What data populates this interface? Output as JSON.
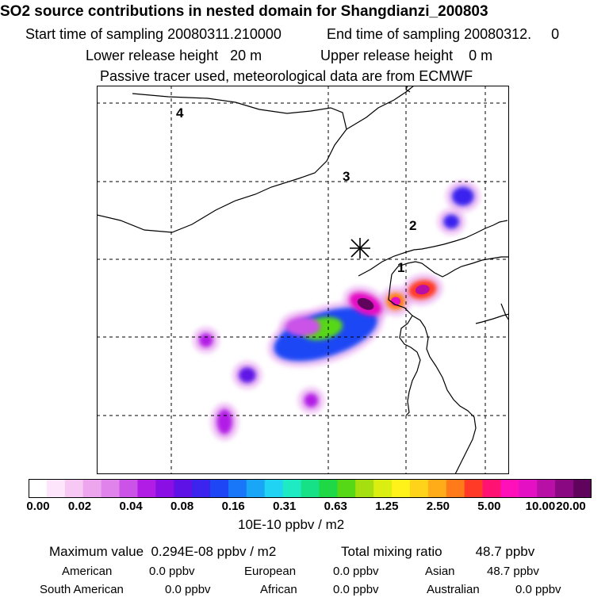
{
  "header": {
    "title": "SO2 source contributions in nested domain for Shangdianzi_200803",
    "start": "Start time of sampling 20080311.210000",
    "end": "End time of sampling 20080312.     0",
    "lower": "Lower release height   20 m",
    "upper": "Upper release height    0 m",
    "note": "Passive tracer used, meteorological data are from ECMWF"
  },
  "colors": {
    "bins": [
      "#ffffff",
      "#fde6fb",
      "#f7c8f4",
      "#eda6ee",
      "#e083ea",
      "#cb53e8",
      "#b21de6",
      "#8a0fe5",
      "#5e12e6",
      "#3a24ee",
      "#1e46f5",
      "#1877f8",
      "#1aa6f7",
      "#21d3f2",
      "#1eeac4",
      "#17e186",
      "#1ed846",
      "#57d816",
      "#a6df0f",
      "#dbee12",
      "#fff11a",
      "#ffd31a",
      "#ffac18",
      "#ff7a18",
      "#ff3a26",
      "#ff1272",
      "#ff10b8",
      "#e411c4",
      "#b80fa6",
      "#8a0882",
      "#60035c"
    ],
    "star": "#000000"
  },
  "chart_data": {
    "type": "heatmap",
    "title": "SO2 source contributions in nested domain for Shangdianzi_200803",
    "colorbar_ticks": [
      "0.00",
      "0.02",
      "0.04",
      "0.08",
      "0.16",
      "0.31",
      "0.63",
      "1.25",
      "2.50",
      "5.00",
      "10.00",
      "20.00"
    ],
    "colorbar_values": [
      0,
      0.02,
      0.04,
      0.08,
      0.16,
      0.31,
      0.63,
      1.25,
      2.5,
      5.0,
      10.0,
      20.0
    ],
    "colorbar_label": "10E-10 ppbv / m2",
    "region_labels": [
      "1",
      "2",
      "3",
      "4"
    ],
    "receptor": "Shangdianzi",
    "plumes": [
      {
        "name": "central plume",
        "level": 0.12,
        "cx": 0.555,
        "cy": 0.64
      },
      {
        "name": "central core",
        "level": 0.65,
        "cx": 0.547,
        "cy": 0.625
      },
      {
        "name": "west blob",
        "level": 0.035,
        "cx": 0.5,
        "cy": 0.62
      },
      {
        "name": "receptor peak",
        "level": 8.0,
        "cx": 0.652,
        "cy": 0.562
      },
      {
        "name": "east hot spot",
        "level": 3.5,
        "cx": 0.79,
        "cy": 0.525
      },
      {
        "name": "east small spot",
        "level": 2.5,
        "cx": 0.725,
        "cy": 0.555
      },
      {
        "name": "northeast spot",
        "level": 0.09,
        "cx": 0.888,
        "cy": 0.285
      },
      {
        "name": "far northeast spot",
        "level": 0.1,
        "cx": 0.86,
        "cy": 0.35
      },
      {
        "name": "southwest spot",
        "level": 0.05,
        "cx": 0.31,
        "cy": 0.865
      },
      {
        "name": "west spot",
        "level": 0.07,
        "cx": 0.365,
        "cy": 0.745
      },
      {
        "name": "far west spot",
        "level": 0.04,
        "cx": 0.265,
        "cy": 0.655
      },
      {
        "name": "south spot",
        "level": 0.04,
        "cx": 0.52,
        "cy": 0.81
      }
    ]
  },
  "stats": {
    "max_label": "Maximum value  0.294E-08 ppbv / m2",
    "total_label": "Total mixing ratio",
    "total_value": "48.7 ppbv",
    "american_label": "American",
    "american_value": "0.0 ppbv",
    "european_label": "European",
    "european_value": "0.0 ppbv",
    "asian_label": "Asian",
    "asian_value": "48.7 ppbv",
    "south_american_label": "South American",
    "south_american_value": "0.0 ppbv",
    "african_label": "African",
    "african_value": "0.0 ppbv",
    "australian_label": "Australian",
    "australian_value": "0.0 ppbv"
  }
}
